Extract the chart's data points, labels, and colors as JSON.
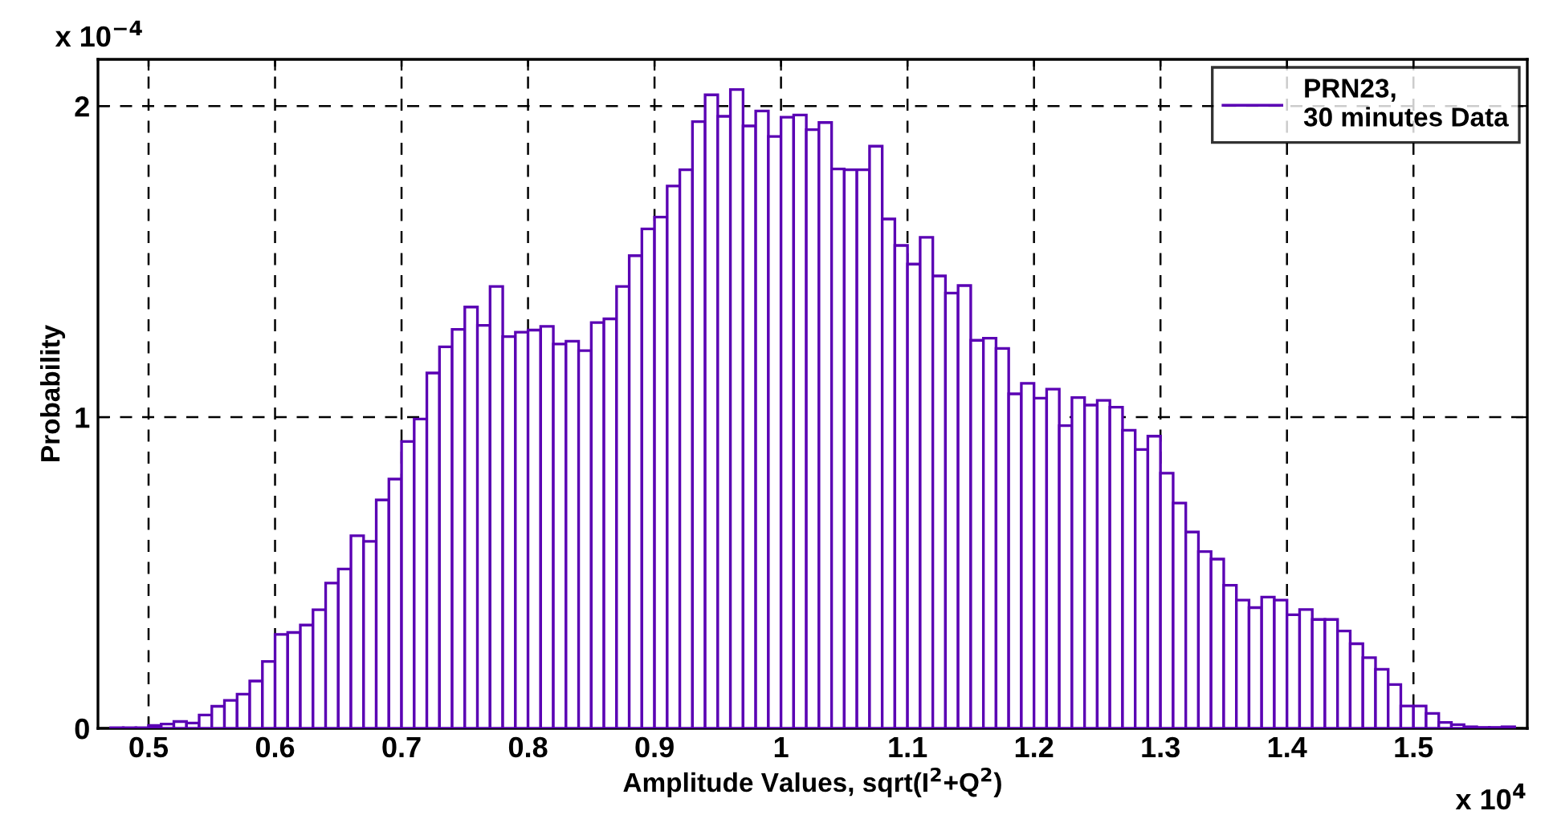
{
  "chart_data": {
    "type": "histogram",
    "xlabel": "Amplitude Values, sqrt(I$^{2}$+Q$^{2}$)",
    "ylabel": "Probability",
    "annotations": [
      "x 10$^{−4}$",
      "x 10$^{4}$"
    ],
    "bins": [
      0.47,
      0.48,
      0.49,
      0.5,
      0.51,
      0.52,
      0.53,
      0.54,
      0.55,
      0.56,
      0.57,
      0.58,
      0.59,
      0.6,
      0.61,
      0.62,
      0.63,
      0.64,
      0.65,
      0.66,
      0.67,
      0.68,
      0.69,
      0.7,
      0.71,
      0.72,
      0.73,
      0.74,
      0.75,
      0.76,
      0.77,
      0.78,
      0.79,
      0.8,
      0.81,
      0.82,
      0.83,
      0.84,
      0.85,
      0.86,
      0.87,
      0.88,
      0.89,
      0.9,
      0.91,
      0.92,
      0.93,
      0.94,
      0.95,
      0.96,
      0.97,
      0.98,
      0.99,
      1.0,
      1.01,
      1.02,
      1.03,
      1.04,
      1.05,
      1.06,
      1.07,
      1.08,
      1.09,
      1.1,
      1.11,
      1.12,
      1.13,
      1.14,
      1.15,
      1.16,
      1.17,
      1.18,
      1.19,
      1.2,
      1.21,
      1.22,
      1.23,
      1.24,
      1.25,
      1.26,
      1.27,
      1.28,
      1.29,
      1.3,
      1.31,
      1.32,
      1.33,
      1.34,
      1.35,
      1.36,
      1.37,
      1.38,
      1.39,
      1.4,
      1.41,
      1.42,
      1.43,
      1.44,
      1.45,
      1.46,
      1.47,
      1.48,
      1.49,
      1.5,
      1.51,
      1.52,
      1.53,
      1.54,
      1.55,
      1.56,
      1.57,
      1.58
    ],
    "series": [
      {
        "name": "PRN23,\n30 minutes Data",
        "color": "#5a00b4",
        "values": [
          0.002,
          0.002,
          0.002,
          0.009,
          0.014,
          0.022,
          0.017,
          0.043,
          0.071,
          0.09,
          0.11,
          0.152,
          0.215,
          0.302,
          0.308,
          0.332,
          0.381,
          0.467,
          0.512,
          0.619,
          0.601,
          0.734,
          0.801,
          0.922,
          0.994,
          1.142,
          1.226,
          1.282,
          1.354,
          1.295,
          1.42,
          1.259,
          1.273,
          1.28,
          1.292,
          1.235,
          1.244,
          1.214,
          1.304,
          1.316,
          1.42,
          1.519,
          1.605,
          1.643,
          1.743,
          1.795,
          1.95,
          2.036,
          1.967,
          2.053,
          1.936,
          1.984,
          1.902,
          1.964,
          1.971,
          1.924,
          1.947,
          1.798,
          1.795,
          1.795,
          1.871,
          1.637,
          1.552,
          1.492,
          1.578,
          1.454,
          1.399,
          1.423,
          1.247,
          1.254,
          1.221,
          1.075,
          1.109,
          1.061,
          1.09,
          0.973,
          1.063,
          1.039,
          1.054,
          1.032,
          0.958,
          0.896,
          0.939,
          0.82,
          0.724,
          0.631,
          0.568,
          0.544,
          0.46,
          0.412,
          0.388,
          0.422,
          0.412,
          0.365,
          0.382,
          0.35,
          0.35,
          0.313,
          0.272,
          0.227,
          0.19,
          0.141,
          0.072,
          0.072,
          0.048,
          0.019,
          0.012,
          0.005,
          0.003,
          0.003,
          0.005
        ]
      }
    ],
    "xlim": [
      0.46,
      1.59
    ],
    "ylim": [
      0,
      2.15
    ],
    "xticks": [
      0.5,
      0.6,
      0.7,
      0.8,
      0.9,
      1,
      1.1,
      1.2,
      1.3,
      1.4,
      1.5
    ],
    "yticks": [
      0,
      1,
      2
    ],
    "grid": true,
    "legend": "top right"
  }
}
